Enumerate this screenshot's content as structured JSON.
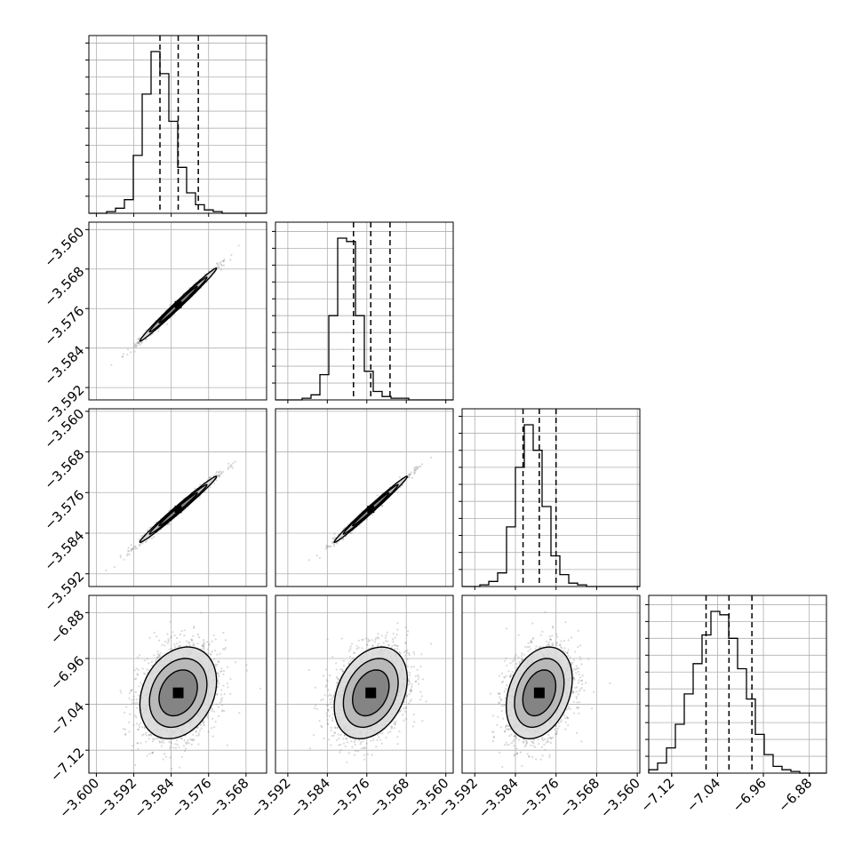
{
  "chart_data": {
    "type": "corner",
    "title": "",
    "colors": {
      "frame": "#000000",
      "grid": "#b0b0b0",
      "density": "#000000",
      "points": "#808080"
    },
    "grid": true,
    "params": [
      {
        "name": "",
        "range": [
          -3.6016,
          -3.5636
        ],
        "ticks": [
          {
            "v": -3.6,
            "label": "−3.600"
          },
          {
            "v": -3.592,
            "label": "−3.592"
          },
          {
            "v": -3.584,
            "label": "−3.584"
          },
          {
            "v": -3.576,
            "label": "−3.576"
          },
          {
            "v": -3.568,
            "label": "−3.568"
          }
        ],
        "quantiles": [
          -3.5864,
          -3.5825,
          -3.5782
        ]
      },
      {
        "name": "",
        "range": [
          -3.5945,
          -3.5585
        ],
        "ticks": [
          {
            "v": -3.592,
            "label": "−3.592"
          },
          {
            "v": -3.584,
            "label": "−3.584"
          },
          {
            "v": -3.576,
            "label": "−3.576"
          },
          {
            "v": -3.568,
            "label": "−3.568"
          },
          {
            "v": -3.56,
            "label": "−3.560"
          }
        ],
        "quantiles": [
          -3.5787,
          -3.5752,
          -3.5713
        ]
      },
      {
        "name": "",
        "range": [
          -3.5945,
          -3.5595
        ],
        "ticks": [
          {
            "v": -3.592,
            "label": "−3.592"
          },
          {
            "v": -3.584,
            "label": "−3.584"
          },
          {
            "v": -3.576,
            "label": "−3.576"
          },
          {
            "v": -3.568,
            "label": "−3.568"
          },
          {
            "v": -3.56,
            "label": "−3.560"
          }
        ],
        "quantiles": [
          -3.5825,
          -3.5793,
          -3.576
        ]
      },
      {
        "name": "",
        "range": [
          -7.16,
          -6.85
        ],
        "ticks": [
          {
            "v": -7.12,
            "label": "−7.12"
          },
          {
            "v": -7.04,
            "label": "−7.04"
          },
          {
            "v": -6.96,
            "label": "−6.96"
          },
          {
            "v": -6.88,
            "label": "−6.88"
          }
        ],
        "quantiles": [
          -7.06,
          -7.02,
          -6.98
        ]
      }
    ],
    "histograms": [
      {
        "counts": [
          0,
          0,
          1,
          3,
          8,
          34,
          70,
          95,
          82,
          54,
          27,
          12,
          5,
          2,
          1,
          0,
          0,
          0,
          0,
          0
        ]
      },
      {
        "counts": [
          0,
          0,
          0,
          1,
          3,
          15,
          50,
          96,
          94,
          50,
          17,
          5,
          2,
          1,
          1,
          0,
          0,
          0,
          0,
          0
        ]
      },
      {
        "counts": [
          0,
          0,
          1,
          3,
          8,
          35,
          70,
          95,
          80,
          47,
          18,
          7,
          2,
          1,
          0,
          0,
          0,
          0,
          0,
          0
        ]
      },
      {
        "counts": [
          2,
          6,
          15,
          29,
          47,
          65,
          82,
          96,
          94,
          80,
          62,
          44,
          23,
          11,
          4,
          2,
          1,
          0,
          0,
          0
        ]
      }
    ],
    "pairs": [
      {
        "x": 0,
        "y": 1,
        "corr": 0.992
      },
      {
        "x": 0,
        "y": 2,
        "corr": 0.99
      },
      {
        "x": 1,
        "y": 2,
        "corr": 0.991
      },
      {
        "x": 0,
        "y": 3,
        "corr": 0.25
      },
      {
        "x": 1,
        "y": 3,
        "corr": 0.3
      },
      {
        "x": 2,
        "y": 3,
        "corr": 0.3
      }
    ]
  }
}
